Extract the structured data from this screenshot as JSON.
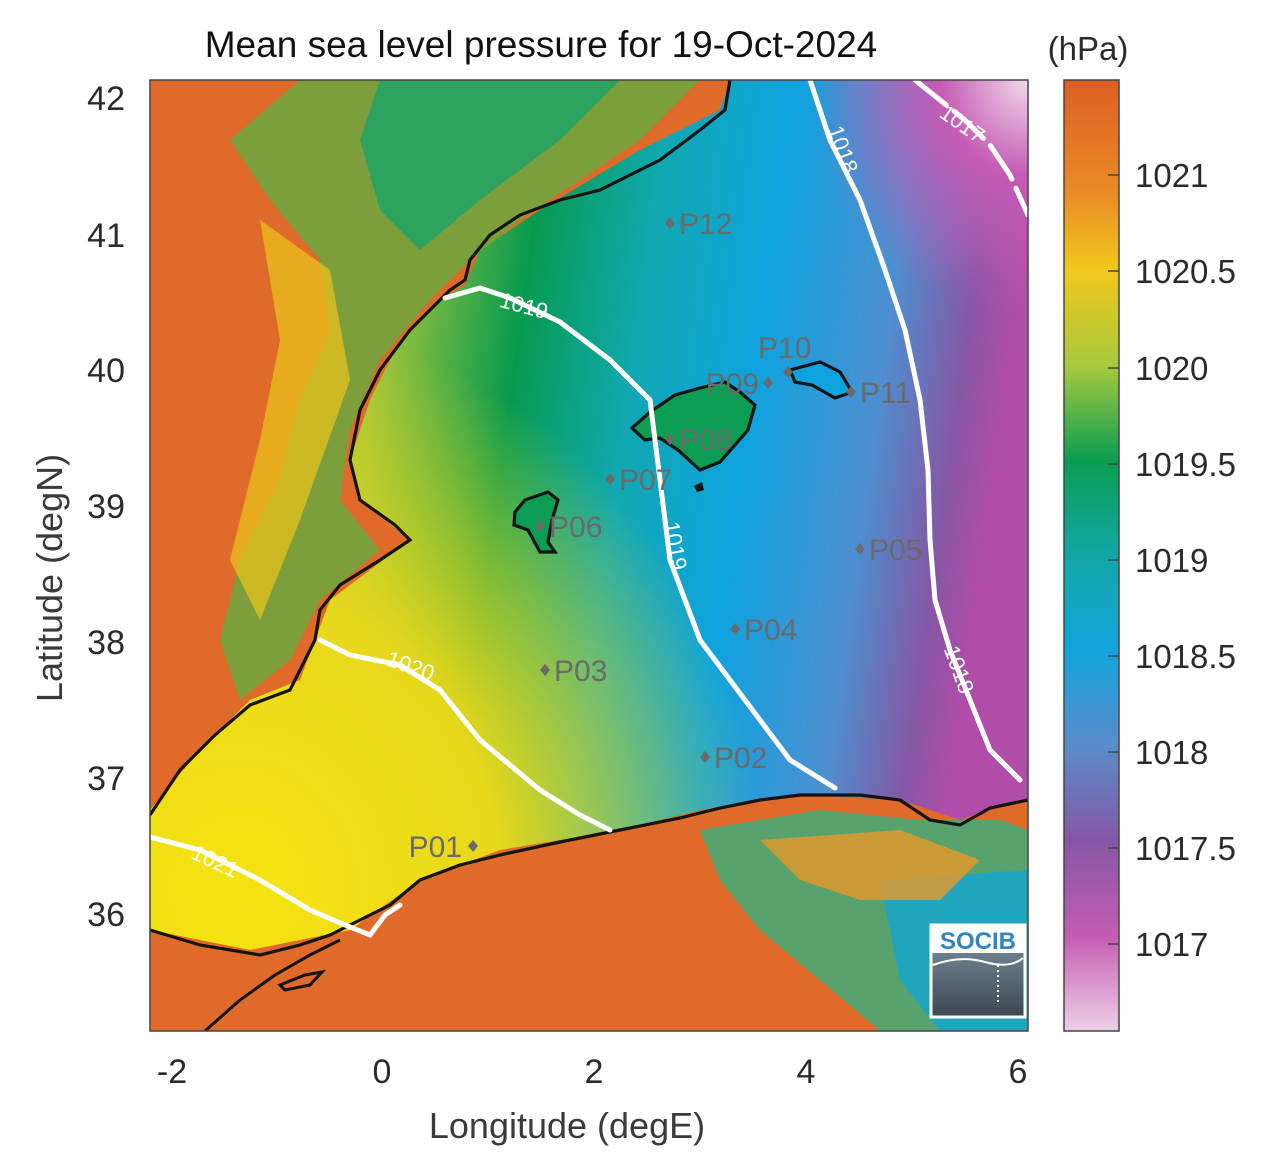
{
  "title": "Mean sea level pressure for 19-Oct-2024",
  "xlabel": "Longitude (degE)",
  "ylabel": "Latitude (degN)",
  "x_ticks": [
    "-2",
    "0",
    "2",
    "4",
    "6"
  ],
  "y_ticks": [
    "42",
    "41",
    "40",
    "39",
    "38",
    "37",
    "36"
  ],
  "colorbar": {
    "unit": "(hPa)",
    "ticks": [
      "1021",
      "1020.5",
      "1020",
      "1019.5",
      "1019",
      "1018.5",
      "1018",
      "1017.5",
      "1017"
    ],
    "range": [
      1016.6,
      1021.4
    ]
  },
  "contour_labels": [
    "1017",
    "1018",
    "1018",
    "1019",
    "1019",
    "1020",
    "1021"
  ],
  "stations": [
    "P01",
    "P02",
    "P03",
    "P04",
    "P05",
    "P06",
    "P07",
    "P08",
    "P09",
    "P10",
    "P11",
    "P12"
  ],
  "logo": "SOCIB",
  "colors": {
    "land_high": "#e06a2a",
    "yellow": "#ecd61c",
    "green": "#069a4e",
    "teal": "#11a8b0",
    "blue": "#0ea3df",
    "purple": "#8557a4",
    "pink": "#e9c6e0",
    "coast": "#141414",
    "contour": "#ffffff",
    "station": "#6a6a6a"
  }
}
